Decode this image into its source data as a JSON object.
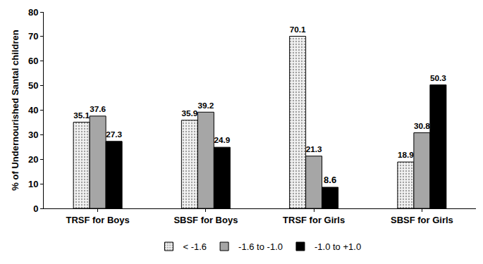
{
  "chart_data": {
    "type": "bar",
    "y_label": "% of Undernourished Santal children",
    "categories": [
      "TRSF for Boys",
      "SBSF for Boys",
      "TRSF for Girls",
      "SBSF for Girls"
    ],
    "series": [
      {
        "name": "< -1.6",
        "color": "#f2f2f2",
        "values": [
          35.1,
          35.9,
          70.1,
          18.9
        ]
      },
      {
        "name": "-1.6 to -1.0",
        "color": "#a6a6a6",
        "values": [
          37.6,
          39.2,
          21.3,
          30.8
        ]
      },
      {
        "name": "-1.0 to +1.0",
        "color": "#000000",
        "values": [
          27.3,
          24.9,
          8.6,
          50.3
        ]
      }
    ],
    "ylim": [
      0,
      80
    ],
    "yticks": [
      0,
      10,
      20,
      30,
      40,
      50,
      60,
      70,
      80
    ],
    "grid": false,
    "legend": "bottom",
    "data_labels": true
  }
}
